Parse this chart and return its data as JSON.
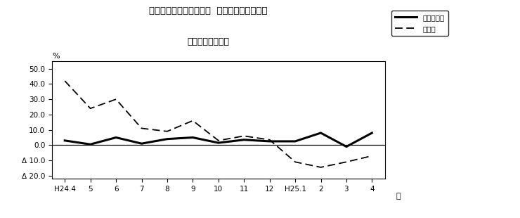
{
  "title_line1": "第２図　所定外労働時間  対前年同月比の推移",
  "title_line2": "（規模５人以上）",
  "xlabel": "月",
  "ylabel": "%",
  "x_labels": [
    "H24.4",
    "5",
    "6",
    "7",
    "8",
    "9",
    "10",
    "11",
    "12",
    "H25.1",
    "2",
    "3",
    "4"
  ],
  "solid_label": "調査産業計",
  "dashed_label": "製造業",
  "solid_values": [
    3.0,
    0.5,
    5.0,
    1.0,
    4.0,
    5.0,
    1.5,
    3.5,
    2.5,
    2.5,
    8.0,
    -1.0,
    8.0
  ],
  "dashed_values": [
    42.0,
    24.0,
    30.0,
    11.0,
    9.0,
    16.0,
    3.0,
    6.0,
    3.5,
    -11.0,
    -14.5,
    -11.0,
    -7.0
  ],
  "yticks": [
    50.0,
    40.0,
    30.0,
    20.0,
    10.0,
    0.0,
    -10.0,
    -20.0
  ],
  "ytick_labels": [
    "50.0",
    "40.0",
    "30.0",
    "20.0",
    "10.0",
    "0.0",
    "Δ 10.0",
    "Δ 20.0"
  ],
  "ylim": [
    -22,
    55
  ],
  "bg_color": "#ffffff",
  "line_color": "#000000",
  "zero_line_color": "#000000",
  "figsize": [
    7.4,
    3.1
  ],
  "dpi": 100
}
